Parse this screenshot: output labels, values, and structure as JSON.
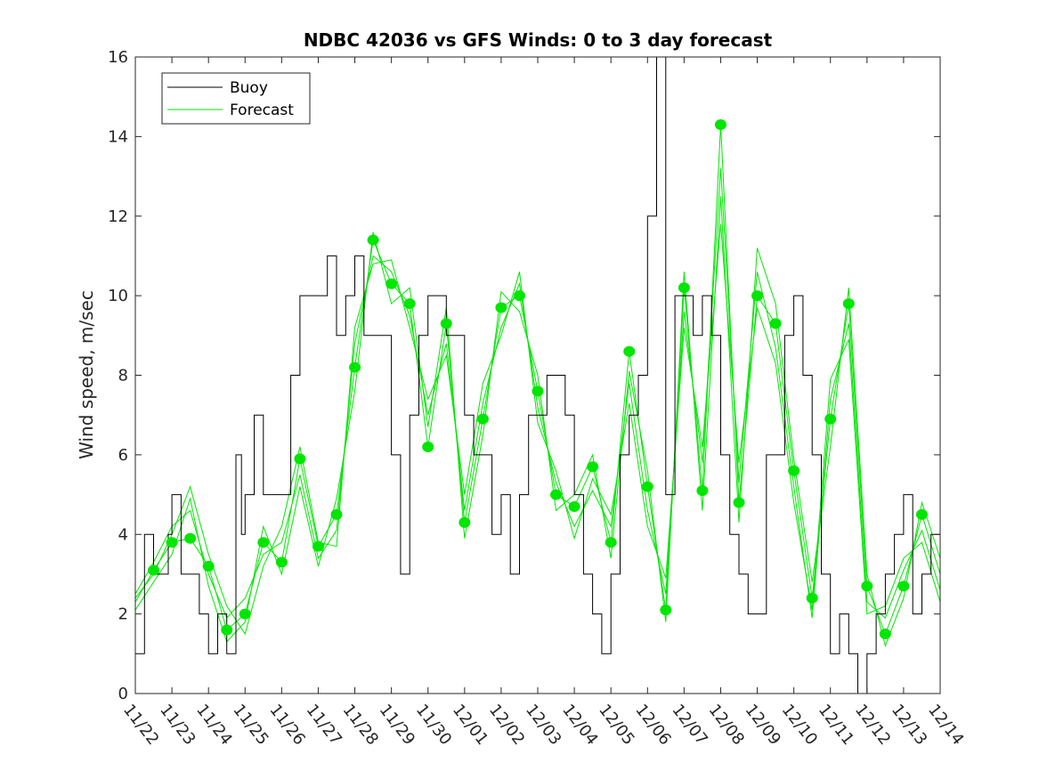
{
  "chart_data": {
    "type": "line",
    "title": "NDBC 42036 vs GFS Winds: 0 to 3 day forecast",
    "xlabel": "",
    "ylabel": "Wind speed, m/sec",
    "ylim": [
      0,
      16
    ],
    "yticks": [
      0,
      2,
      4,
      6,
      8,
      10,
      12,
      14,
      16
    ],
    "xlim_days": [
      0,
      22
    ],
    "x_tick_labels": [
      "11/22",
      "11/23",
      "11/24",
      "11/25",
      "11/26",
      "11/27",
      "11/28",
      "11/29",
      "11/30",
      "12/01",
      "12/02",
      "12/03",
      "12/04",
      "12/05",
      "12/06",
      "12/07",
      "12/08",
      "12/09",
      "12/10",
      "12/11",
      "12/12",
      "12/13",
      "12/14"
    ],
    "grid": false,
    "legend_position": "top-left",
    "colors": {
      "buoy": "#000000",
      "forecast": "#00e600"
    },
    "series": [
      {
        "name": "Buoy",
        "x": [
          0.0,
          0.25,
          0.5,
          0.75,
          0.9,
          1.0,
          1.25,
          1.5,
          1.75,
          2.0,
          2.25,
          2.5,
          2.75,
          2.9,
          3.0,
          3.25,
          3.5,
          3.75,
          4.0,
          4.25,
          4.5,
          4.75,
          5.0,
          5.25,
          5.5,
          5.75,
          6.0,
          6.25,
          6.5,
          6.75,
          7.0,
          7.25,
          7.5,
          7.75,
          8.0,
          8.25,
          8.5,
          8.75,
          9.0,
          9.25,
          9.5,
          9.75,
          10.0,
          10.25,
          10.5,
          10.75,
          11.0,
          11.25,
          11.5,
          11.75,
          12.0,
          12.25,
          12.5,
          12.75,
          13.0,
          13.25,
          13.5,
          13.75,
          14.0,
          14.25,
          14.5,
          14.75,
          15.0,
          15.25,
          15.5,
          15.75,
          16.0,
          16.25,
          16.5,
          16.75,
          17.0,
          17.25,
          17.5,
          17.75,
          18.0,
          18.25,
          18.5,
          18.75,
          19.0,
          19.25,
          19.5,
          19.75,
          20.0,
          20.25,
          20.5,
          20.75,
          21.0,
          21.25,
          21.5,
          21.75,
          22.0
        ],
        "values": [
          1,
          4,
          3,
          3,
          4,
          5,
          3,
          3,
          2,
          1,
          2,
          1,
          6,
          4,
          5,
          7,
          5,
          5,
          5,
          8,
          10,
          10,
          10,
          11,
          9,
          10,
          11,
          9,
          9,
          9,
          6,
          3,
          7,
          9,
          10,
          10,
          9,
          9,
          7,
          6,
          6,
          4,
          5,
          3,
          5,
          7,
          7,
          8,
          8,
          7,
          5,
          3,
          2,
          1,
          3,
          6,
          7,
          8,
          12,
          16,
          5,
          10,
          10,
          9,
          10,
          9,
          6,
          4,
          3,
          2,
          2,
          6,
          6,
          9,
          10,
          8,
          6,
          3,
          1,
          2,
          1,
          0,
          1,
          2,
          3,
          4,
          5,
          2,
          3,
          4,
          4
        ]
      },
      {
        "name": "Forecast",
        "x": [
          0.0,
          0.5,
          1.0,
          1.5,
          2.0,
          2.5,
          3.0,
          3.5,
          4.0,
          4.5,
          5.0,
          5.5,
          6.0,
          6.5,
          7.0,
          7.5,
          8.0,
          8.5,
          9.0,
          9.5,
          10.0,
          10.5,
          11.0,
          11.5,
          12.0,
          12.5,
          13.0,
          13.5,
          14.0,
          14.5,
          15.0,
          15.5,
          16.0,
          16.5,
          17.0,
          17.5,
          18.0,
          18.5,
          19.0,
          19.5,
          20.0,
          20.5,
          21.0,
          21.5,
          22.0
        ],
        "values": [
          2.3,
          3.1,
          3.8,
          3.9,
          3.2,
          1.6,
          2.0,
          3.8,
          3.3,
          5.9,
          3.7,
          4.5,
          8.2,
          11.4,
          10.3,
          9.8,
          6.2,
          9.3,
          4.3,
          6.9,
          9.7,
          10.0,
          7.6,
          5.0,
          4.7,
          5.7,
          3.8,
          8.6,
          5.2,
          2.1,
          10.2,
          5.1,
          14.3,
          4.8,
          10.0,
          9.3,
          5.6,
          2.4,
          6.9,
          9.8,
          2.7,
          1.5,
          2.7,
          4.5,
          3.0
        ]
      },
      {
        "name": "",
        "x": [
          0.0,
          0.5,
          1.0,
          1.5,
          2.0,
          2.5,
          3.0,
          3.5,
          4.0,
          4.5,
          5.0,
          5.5,
          6.0,
          6.5,
          7.0,
          7.5,
          8.0,
          8.5,
          9.0,
          9.5,
          10.0,
          10.5,
          11.0,
          11.5,
          12.0,
          12.5,
          13.0,
          13.5,
          14.0,
          14.5,
          15.0,
          15.5,
          16.0,
          16.5,
          17.0,
          17.5,
          18.0,
          18.5,
          19.0,
          19.5,
          20.0,
          20.5,
          21.0,
          21.5,
          22.0
        ],
        "values": [
          2.5,
          3.3,
          4.2,
          4.6,
          3.0,
          1.9,
          2.4,
          3.5,
          3.8,
          5.5,
          3.4,
          4.1,
          8.8,
          11.0,
          10.6,
          9.5,
          7.0,
          8.8,
          4.6,
          7.3,
          9.2,
          10.3,
          7.2,
          5.3,
          4.2,
          5.1,
          4.2,
          7.8,
          4.6,
          2.5,
          9.6,
          5.8,
          13.2,
          5.3,
          10.6,
          8.7,
          5.2,
          1.9,
          7.4,
          9.3,
          2.3,
          1.9,
          3.1,
          4.1,
          2.6
        ]
      },
      {
        "name": "",
        "x": [
          0.0,
          0.5,
          1.0,
          1.5,
          2.0,
          2.5,
          3.0,
          3.5,
          4.0,
          4.5,
          5.0,
          5.5,
          6.0,
          6.5,
          7.0,
          7.5,
          8.0,
          8.5,
          9.0,
          9.5,
          10.0,
          10.5,
          11.0,
          11.5,
          12.0,
          12.5,
          13.0,
          13.5,
          14.0,
          14.5,
          15.0,
          15.5,
          16.0,
          16.5,
          17.0,
          17.5,
          18.0,
          18.5,
          19.0,
          19.5,
          20.0,
          20.5,
          21.0,
          21.5,
          22.0
        ],
        "values": [
          2.1,
          2.8,
          3.5,
          4.9,
          2.7,
          1.3,
          1.8,
          4.2,
          3.0,
          5.2,
          3.2,
          4.9,
          7.6,
          11.6,
          9.8,
          10.2,
          6.7,
          9.7,
          3.9,
          6.5,
          10.1,
          9.6,
          8.0,
          4.6,
          5.0,
          6.0,
          3.4,
          8.1,
          5.6,
          1.8,
          10.6,
          4.6,
          12.5,
          4.3,
          11.2,
          9.8,
          5.9,
          2.8,
          6.2,
          10.2,
          3.0,
          1.2,
          2.4,
          4.8,
          3.4
        ]
      },
      {
        "name": "",
        "x": [
          0.0,
          0.5,
          1.0,
          1.5,
          2.0,
          2.5,
          3.0,
          3.5,
          4.0,
          4.5,
          5.0,
          5.5,
          6.0,
          6.5,
          7.0,
          7.5,
          8.0,
          8.5,
          9.0,
          9.5,
          10.0,
          10.5,
          11.0,
          11.5,
          12.0,
          12.5,
          13.0,
          13.5,
          14.0,
          14.5,
          15.0,
          15.5,
          16.0,
          16.5,
          17.0,
          17.5,
          18.0,
          18.5,
          19.0,
          19.5,
          20.0,
          20.5,
          21.0,
          21.5,
          22.0
        ],
        "values": [
          2.4,
          3.0,
          4.0,
          5.2,
          3.5,
          2.2,
          1.5,
          3.2,
          4.2,
          6.2,
          3.8,
          3.7,
          9.2,
          10.8,
          10.9,
          9.2,
          7.4,
          8.5,
          5.0,
          7.8,
          9.0,
          10.6,
          6.8,
          5.6,
          3.9,
          5.4,
          4.5,
          7.3,
          4.2,
          2.9,
          9.2,
          6.2,
          11.8,
          5.8,
          9.7,
          8.3,
          4.8,
          2.1,
          7.9,
          8.9,
          2.0,
          2.2,
          3.4,
          3.8,
          2.3
        ]
      }
    ]
  }
}
